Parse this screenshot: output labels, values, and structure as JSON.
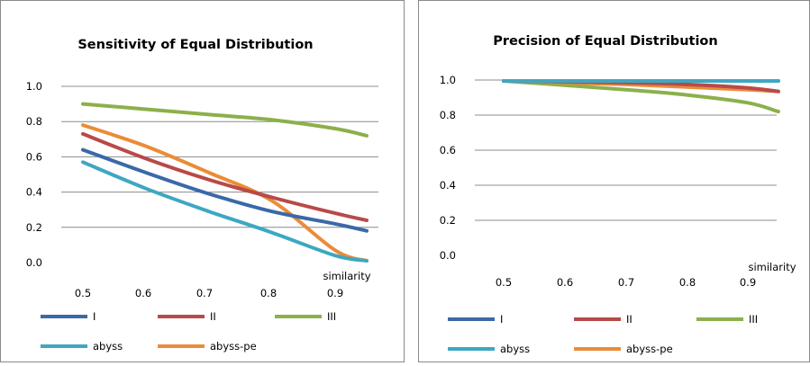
{
  "colors": {
    "I": "#3a69a8",
    "II": "#b84a48",
    "III": "#8cb04a",
    "abyss": "#3ea7c2",
    "abyss-pe": "#ea8c38"
  },
  "chart_data": [
    {
      "type": "line",
      "title": "Sensitivity of Equal Distribution",
      "xlabel": "similarity",
      "ylabel": "",
      "xlim": [
        0.5,
        0.95
      ],
      "ylim": [
        0.0,
        1.0
      ],
      "xticks": [
        "0.5",
        "0.6",
        "0.7",
        "0.8",
        "0.9"
      ],
      "yticks": [
        "0.0",
        "0.2",
        "0.4",
        "0.6",
        "0.8",
        "1.0"
      ],
      "grid": "horizontal",
      "legend": "bottom",
      "series": [
        {
          "name": "I",
          "x": [
            0.5,
            0.6,
            0.7,
            0.8,
            0.9,
            0.95
          ],
          "values": [
            0.64,
            0.51,
            0.39,
            0.29,
            0.22,
            0.18
          ]
        },
        {
          "name": "II",
          "x": [
            0.5,
            0.6,
            0.7,
            0.8,
            0.9,
            0.95
          ],
          "values": [
            0.73,
            0.59,
            0.47,
            0.37,
            0.28,
            0.24
          ]
        },
        {
          "name": "III",
          "x": [
            0.5,
            0.6,
            0.7,
            0.8,
            0.9,
            0.95
          ],
          "values": [
            0.9,
            0.87,
            0.84,
            0.81,
            0.76,
            0.72
          ]
        },
        {
          "name": "abyss",
          "x": [
            0.5,
            0.6,
            0.7,
            0.8,
            0.9,
            0.95
          ],
          "values": [
            0.57,
            0.42,
            0.29,
            0.17,
            0.04,
            0.01
          ]
        },
        {
          "name": "abyss-pe",
          "x": [
            0.5,
            0.6,
            0.7,
            0.8,
            0.9,
            0.95
          ],
          "values": [
            0.78,
            0.66,
            0.51,
            0.35,
            0.07,
            0.01
          ]
        }
      ]
    },
    {
      "type": "line",
      "title": "Precision of Equal Distribution",
      "xlabel": "similarity",
      "ylabel": "",
      "xlim": [
        0.5,
        0.95
      ],
      "ylim": [
        0.0,
        1.0
      ],
      "xticks": [
        "0.5",
        "0.6",
        "0.7",
        "0.8",
        "0.9"
      ],
      "yticks": [
        "0.0",
        "0.2",
        "0.4",
        "0.6",
        "0.8",
        "1.0"
      ],
      "grid": "horizontal",
      "legend": "bottom",
      "series": [
        {
          "name": "I",
          "x": [
            0.5,
            0.6,
            0.7,
            0.8,
            0.9,
            0.95
          ],
          "values": [
            0.995,
            0.995,
            0.995,
            0.995,
            0.995,
            0.995
          ]
        },
        {
          "name": "II",
          "x": [
            0.5,
            0.6,
            0.7,
            0.8,
            0.9,
            0.95
          ],
          "values": [
            0.995,
            0.99,
            0.985,
            0.975,
            0.955,
            0.935
          ]
        },
        {
          "name": "III",
          "x": [
            0.5,
            0.6,
            0.7,
            0.8,
            0.9,
            0.95
          ],
          "values": [
            0.995,
            0.97,
            0.945,
            0.915,
            0.87,
            0.82
          ]
        },
        {
          "name": "abyss",
          "x": [
            0.5,
            0.6,
            0.7,
            0.8,
            0.9,
            0.95
          ],
          "values": [
            0.995,
            0.995,
            0.995,
            0.995,
            0.995,
            0.995
          ]
        },
        {
          "name": "abyss-pe",
          "x": [
            0.5,
            0.6,
            0.7,
            0.8,
            0.9,
            0.95
          ],
          "values": [
            0.995,
            0.985,
            0.975,
            0.96,
            0.945,
            0.935
          ]
        }
      ]
    }
  ]
}
